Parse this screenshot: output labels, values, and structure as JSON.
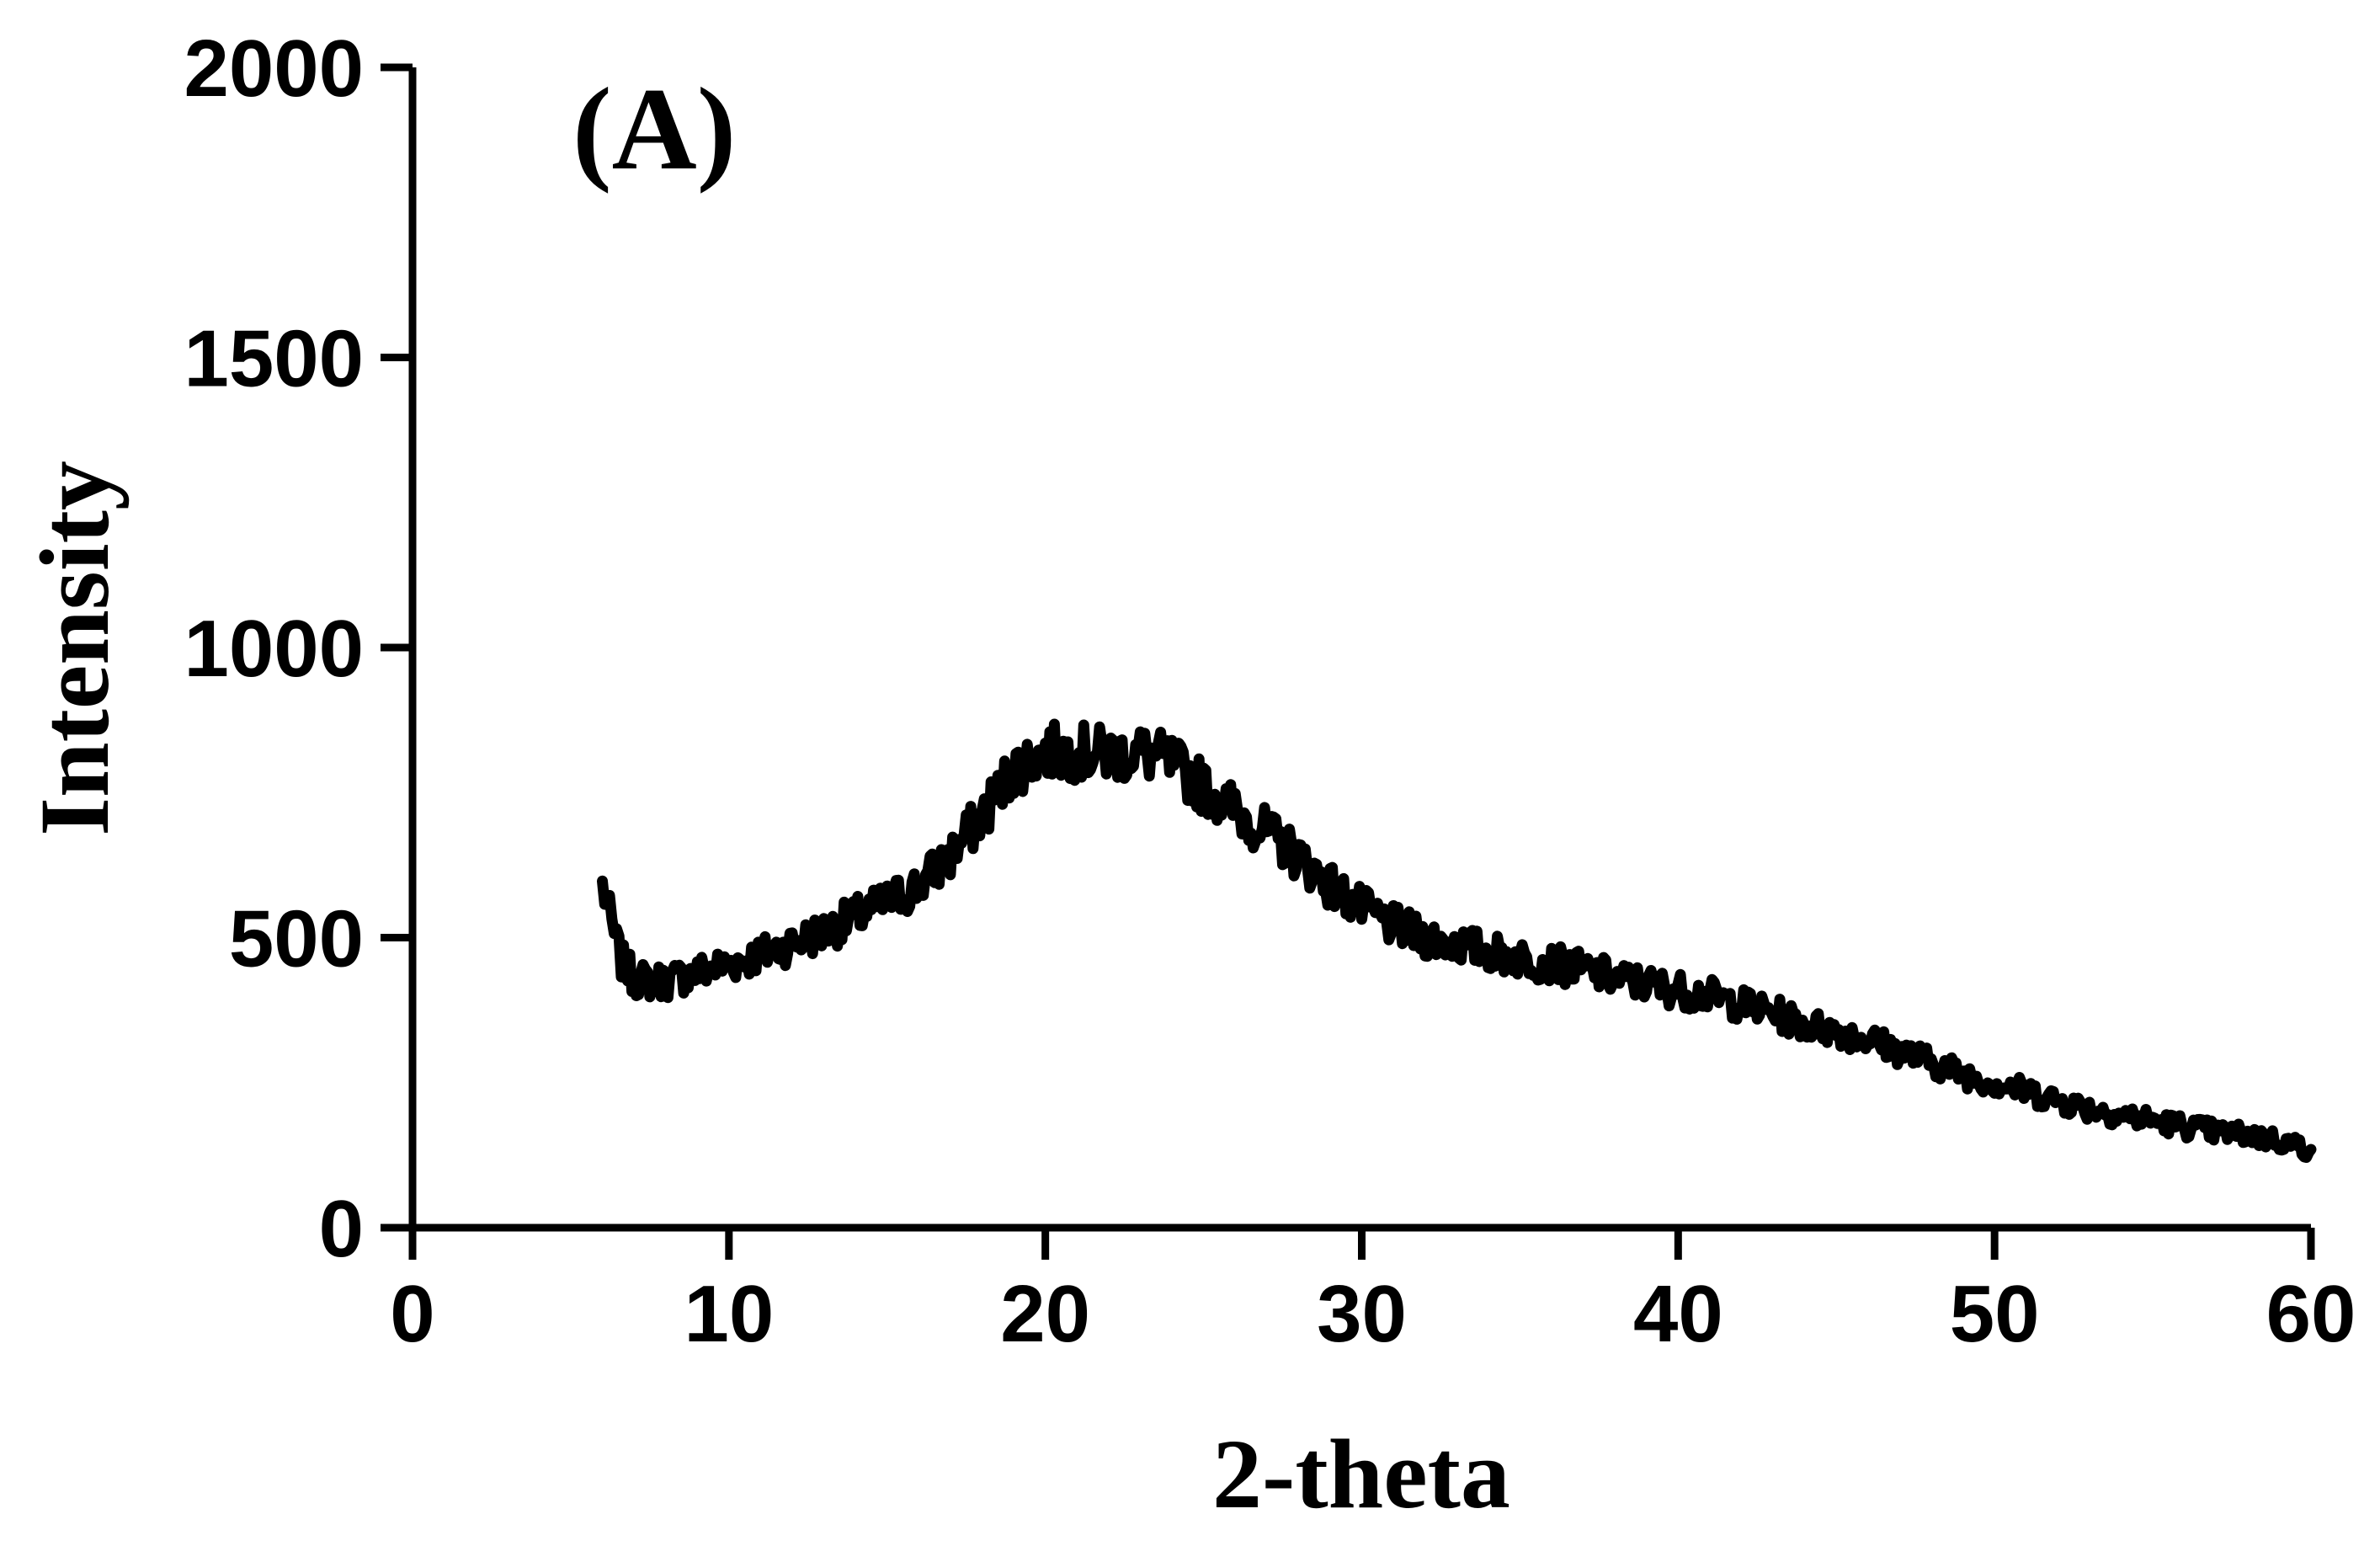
{
  "chart_data": {
    "type": "line",
    "panel_label": "(A)",
    "xlabel": "2-theta",
    "ylabel": "Intensity",
    "xlim": [
      0,
      60
    ],
    "ylim": [
      0,
      2000
    ],
    "xticks": [
      0,
      10,
      20,
      30,
      40,
      50,
      60
    ],
    "yticks": [
      0,
      500,
      1000,
      1500,
      2000
    ],
    "xtick_labels": [
      "0",
      "10",
      "20",
      "30",
      "40",
      "50",
      "60"
    ],
    "ytick_labels": [
      "0",
      "500",
      "1000",
      "1500",
      "2000"
    ],
    "grid": false,
    "series": [
      {
        "color": "#000000",
        "x": [
          6.0,
          6.3,
          6.6,
          7.0,
          7.5,
          8,
          9,
          10,
          11,
          12,
          13,
          14,
          15,
          16,
          17,
          18,
          19,
          20,
          21,
          22,
          23,
          24,
          25,
          26,
          27,
          28,
          29,
          30,
          31,
          32,
          33,
          34,
          35,
          36,
          37,
          38,
          39,
          40,
          41,
          42,
          43,
          44,
          45,
          46,
          47,
          48,
          49,
          50,
          51,
          52,
          53,
          54,
          55,
          56,
          57,
          58,
          59,
          60
        ],
        "y": [
          590,
          520,
          460,
          430,
          425,
          425,
          440,
          455,
          470,
          490,
          510,
          535,
          560,
          590,
          640,
          710,
          790,
          820,
          820,
          815,
          820,
          800,
          760,
          720,
          680,
          640,
          590,
          550,
          520,
          500,
          490,
          475,
          465,
          455,
          445,
          430,
          420,
          410,
          400,
          385,
          370,
          350,
          340,
          325,
          305,
          285,
          265,
          250,
          235,
          220,
          205,
          195,
          185,
          175,
          165,
          160,
          150,
          135
        ]
      }
    ]
  }
}
